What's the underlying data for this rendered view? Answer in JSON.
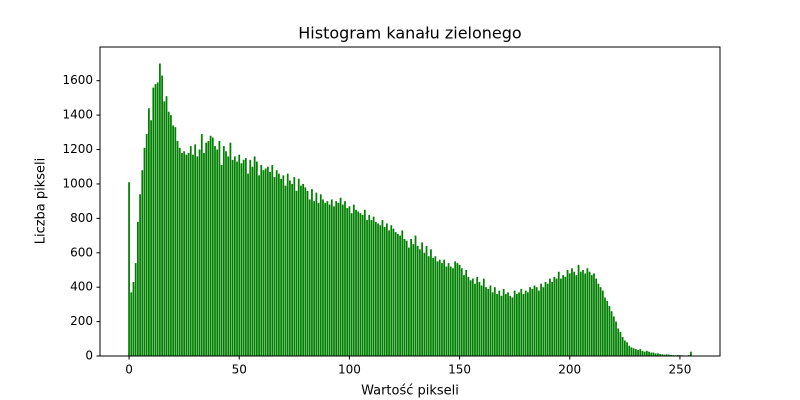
{
  "chart_data": {
    "type": "bar",
    "title": "Histogram kanału zielonego",
    "xlabel": "Wartość pikseli",
    "ylabel": "Liczba pikseli",
    "color": "#008000",
    "x": [
      0,
      1,
      2,
      3,
      4,
      5,
      6,
      7,
      8,
      9,
      10,
      11,
      12,
      13,
      14,
      15,
      16,
      17,
      18,
      19,
      20,
      21,
      22,
      23,
      24,
      25,
      26,
      27,
      28,
      29,
      30,
      31,
      32,
      33,
      34,
      35,
      36,
      37,
      38,
      39,
      40,
      41,
      42,
      43,
      44,
      45,
      46,
      47,
      48,
      49,
      50,
      51,
      52,
      53,
      54,
      55,
      56,
      57,
      58,
      59,
      60,
      61,
      62,
      63,
      64,
      65,
      66,
      67,
      68,
      69,
      70,
      71,
      72,
      73,
      74,
      75,
      76,
      77,
      78,
      79,
      80,
      81,
      82,
      83,
      84,
      85,
      86,
      87,
      88,
      89,
      90,
      91,
      92,
      93,
      94,
      95,
      96,
      97,
      98,
      99,
      100,
      101,
      102,
      103,
      104,
      105,
      106,
      107,
      108,
      109,
      110,
      111,
      112,
      113,
      114,
      115,
      116,
      117,
      118,
      119,
      120,
      121,
      122,
      123,
      124,
      125,
      126,
      127,
      128,
      129,
      130,
      131,
      132,
      133,
      134,
      135,
      136,
      137,
      138,
      139,
      140,
      141,
      142,
      143,
      144,
      145,
      146,
      147,
      148,
      149,
      150,
      151,
      152,
      153,
      154,
      155,
      156,
      157,
      158,
      159,
      160,
      161,
      162,
      163,
      164,
      165,
      166,
      167,
      168,
      169,
      170,
      171,
      172,
      173,
      174,
      175,
      176,
      177,
      178,
      179,
      180,
      181,
      182,
      183,
      184,
      185,
      186,
      187,
      188,
      189,
      190,
      191,
      192,
      193,
      194,
      195,
      196,
      197,
      198,
      199,
      200,
      201,
      202,
      203,
      204,
      205,
      206,
      207,
      208,
      209,
      210,
      211,
      212,
      213,
      214,
      215,
      216,
      217,
      218,
      219,
      220,
      221,
      222,
      223,
      224,
      225,
      226,
      227,
      228,
      229,
      230,
      231,
      232,
      233,
      234,
      235,
      236,
      237,
      238,
      239,
      240,
      241,
      242,
      243,
      244,
      245,
      246,
      247,
      248,
      249,
      250,
      251,
      252,
      253,
      254,
      255
    ],
    "values": [
      1010,
      370,
      430,
      540,
      780,
      940,
      1080,
      1210,
      1290,
      1440,
      1370,
      1560,
      1580,
      1590,
      1700,
      1630,
      1480,
      1510,
      1420,
      1400,
      1340,
      1330,
      1250,
      1210,
      1180,
      1190,
      1170,
      1180,
      1220,
      1170,
      1230,
      1160,
      1200,
      1290,
      1180,
      1240,
      1250,
      1280,
      1270,
      1220,
      1200,
      1250,
      1110,
      1220,
      1190,
      1160,
      1240,
      1140,
      1160,
      1130,
      1170,
      1120,
      1140,
      1150,
      1060,
      1140,
      1100,
      1160,
      1130,
      1050,
      1110,
      1080,
      1090,
      1100,
      1070,
      1110,
      1040,
      1080,
      1060,
      1030,
      1050,
      990,
      1060,
      1020,
      1000,
      1040,
      960,
      1030,
      990,
      1000,
      980,
      960,
      910,
      970,
      900,
      950,
      890,
      940,
      910,
      890,
      900,
      880,
      910,
      870,
      900,
      890,
      920,
      880,
      900,
      860,
      870,
      830,
      880,
      850,
      840,
      830,
      820,
      850,
      790,
      820,
      790,
      810,
      780,
      770,
      760,
      790,
      750,
      770,
      730,
      760,
      740,
      720,
      710,
      700,
      730,
      680,
      670,
      630,
      680,
      650,
      700,
      640,
      620,
      660,
      600,
      640,
      580,
      620,
      570,
      580,
      550,
      560,
      540,
      560,
      520,
      540,
      520,
      510,
      550,
      540,
      530,
      510,
      470,
      500,
      460,
      440,
      450,
      420,
      460,
      430,
      410,
      450,
      400,
      390,
      410,
      370,
      400,
      360,
      380,
      350,
      390,
      360,
      370,
      350,
      340,
      380,
      360,
      370,
      390,
      360,
      380,
      370,
      400,
      390,
      410,
      400,
      380,
      420,
      400,
      430,
      420,
      450,
      430,
      460,
      450,
      490,
      450,
      470,
      460,
      500,
      480,
      510,
      490,
      470,
      530,
      490,
      500,
      480,
      510,
      490,
      470,
      480,
      450,
      420,
      400,
      380,
      340,
      320,
      290,
      260,
      230,
      200,
      160,
      140,
      110,
      90,
      80,
      60,
      50,
      45,
      40,
      35,
      40,
      30,
      25,
      30,
      25,
      20,
      20,
      15,
      15,
      12,
      10,
      8,
      10,
      8,
      6,
      5,
      4,
      6,
      5,
      4,
      3,
      2,
      5,
      25
    ],
    "xlim": [
      -13.19,
      268.19
    ],
    "xticks": [
      0,
      50,
      100,
      150,
      200,
      250
    ],
    "ylim": [
      0,
      1796
    ],
    "yticks": [
      0,
      200,
      400,
      600,
      800,
      1000,
      1200,
      1400,
      1600
    ]
  }
}
